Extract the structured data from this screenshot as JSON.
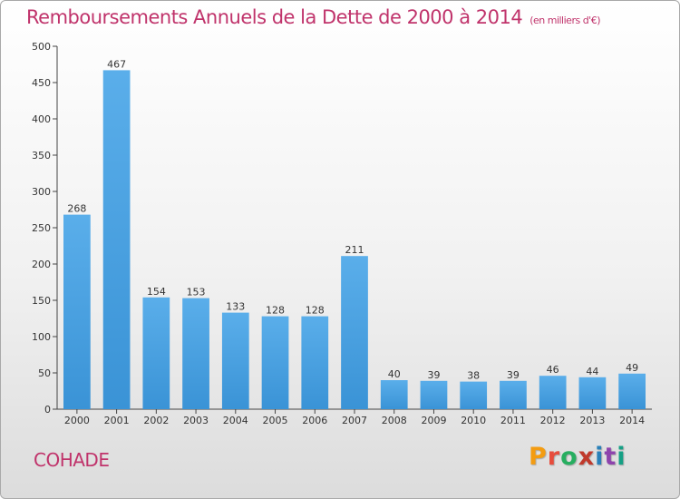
{
  "chart_data": {
    "type": "bar",
    "title": "Remboursements Annuels de la Dette de 2000 à 2014",
    "unit": "(en milliers d'€)",
    "categories": [
      "2000",
      "2001",
      "2002",
      "2003",
      "2004",
      "2005",
      "2006",
      "2007",
      "2008",
      "2009",
      "2010",
      "2011",
      "2012",
      "2013",
      "2014"
    ],
    "values": [
      268,
      467,
      154,
      153,
      133,
      128,
      128,
      211,
      40,
      39,
      38,
      39,
      46,
      44,
      49
    ],
    "ylim": [
      0,
      500
    ],
    "yticks": [
      0,
      50,
      100,
      150,
      200,
      250,
      300,
      350,
      400,
      450,
      500
    ],
    "grid": false,
    "bar_color": "#3a93d6"
  },
  "footer": {
    "commune": "COHADE",
    "logo_letters": [
      "P",
      "r",
      "o",
      "x",
      "i",
      "t",
      "i"
    ],
    "logo_colors": [
      "#f39c12",
      "#e74c3c",
      "#27ae60",
      "#c0392b",
      "#2980b9",
      "#8e44ad",
      "#16a085"
    ]
  }
}
